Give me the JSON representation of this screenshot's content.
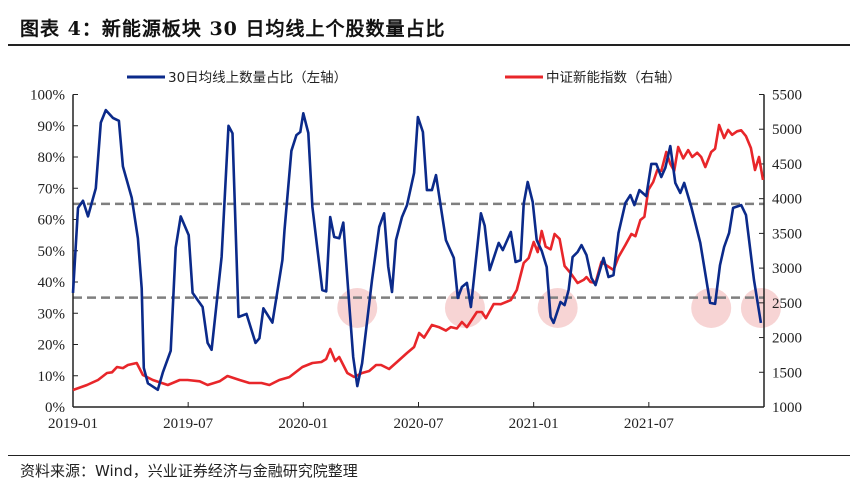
{
  "title": "图表 4：新能源板块 30 日均线上个股数量占比",
  "source": "资料来源：Wind，兴业证券经济与金融研究院整理",
  "chart_data": {
    "type": "line",
    "x_unit": "months since 2019-01",
    "xlim": [
      0,
      36
    ],
    "x_ticks": [
      0,
      6,
      12,
      18,
      24,
      30
    ],
    "x_tick_labels": [
      "2019-01",
      "2019-07",
      "2020-01",
      "2020-07",
      "2021-01",
      "2021-07"
    ],
    "y_left": {
      "lim": [
        0,
        100
      ],
      "ticks": [
        0,
        10,
        20,
        30,
        40,
        50,
        60,
        70,
        80,
        90,
        100
      ],
      "tick_labels": [
        "0%",
        "10%",
        "20%",
        "30%",
        "40%",
        "50%",
        "60%",
        "70%",
        "80%",
        "90%",
        "100%"
      ]
    },
    "y_right": {
      "lim": [
        1000,
        5500
      ],
      "ticks": [
        1000,
        1500,
        2000,
        2500,
        3000,
        3500,
        4000,
        4500,
        5000,
        5500
      ],
      "tick_labels": [
        "1000",
        "1500",
        "2000",
        "2500",
        "3000",
        "3500",
        "4000",
        "4500",
        "5000",
        "5500"
      ]
    },
    "legend_position": "top",
    "grid": false,
    "reference_lines": [
      65,
      35
    ],
    "highlights": [
      {
        "x": 14.81,
        "y": 31.7
      },
      {
        "x": 20.42,
        "y": 31.7
      },
      {
        "x": 25.25,
        "y": 31.7
      },
      {
        "x": 33.25,
        "y": 31.7
      },
      {
        "x": 35.84,
        "y": 31.7
      }
    ],
    "series": [
      {
        "name": "30日均线上数量占比（左轴）",
        "axis": "left",
        "color": "#0b2a8a",
        "x": [
          0,
          0.26,
          0.52,
          0.78,
          1.19,
          1.45,
          1.71,
          2.08,
          2.39,
          2.6,
          3.06,
          3.38,
          3.58,
          3.69,
          3.9,
          4.42,
          4.68,
          5.09,
          5.35,
          5.61,
          6.03,
          6.23,
          6.75,
          7.01,
          7.22,
          7.74,
          8.1,
          8.31,
          8.62,
          9.04,
          9.51,
          9.71,
          9.92,
          10.39,
          10.91,
          11.02,
          11.38,
          11.64,
          11.84,
          12,
          12.26,
          12.47,
          12.99,
          13.19,
          13.4,
          13.61,
          13.87,
          14.08,
          14.39,
          14.6,
          14.81,
          15.06,
          15.58,
          15.95,
          16.21,
          16.42,
          16.62,
          16.83,
          17.14,
          17.4,
          17.77,
          17.97,
          18.23,
          18.44,
          18.7,
          18.91,
          19.43,
          19.84,
          20.05,
          20.26,
          20.52,
          20.73,
          20.99,
          21.25,
          21.45,
          21.71,
          22.18,
          22.39,
          22.81,
          23.06,
          23.32,
          23.48,
          23.69,
          23.95,
          24.16,
          24.42,
          24.68,
          24.88,
          25.04,
          25.4,
          25.61,
          25.82,
          26.03,
          26.29,
          26.49,
          26.75,
          27.01,
          27.22,
          27.64,
          27.9,
          28.16,
          28.42,
          28.78,
          29.04,
          29.25,
          29.51,
          29.87,
          30.13,
          30.39,
          30.65,
          30.86,
          31.12,
          31.38,
          31.64,
          31.84,
          32.21,
          32.68,
          33.19,
          33.45,
          33.71,
          33.92,
          34.18,
          34.39,
          34.81,
          35.06,
          35.48,
          35.84
        ],
        "values": [
          36.5,
          63.7,
          66,
          61,
          70,
          91,
          95,
          92.5,
          91.6,
          77,
          67,
          54,
          38,
          12.5,
          7.6,
          5.5,
          11,
          18,
          51,
          61,
          55,
          36.5,
          32,
          20.5,
          18.3,
          48,
          90,
          87.6,
          28.8,
          29.8,
          20.5,
          22,
          31.6,
          27,
          47,
          56.6,
          82,
          87,
          88,
          94,
          87.7,
          64,
          37.4,
          37,
          60.8,
          54.4,
          54,
          59,
          33,
          16,
          6.7,
          14,
          40.6,
          57.6,
          62,
          45,
          36.8,
          53.4,
          60.8,
          64.6,
          74.9,
          92.8,
          88,
          69.4,
          69.4,
          74.2,
          53.4,
          47.7,
          34.9,
          38.4,
          39.7,
          32,
          47,
          62,
          58,
          43.8,
          52.5,
          50.2,
          56,
          46.4,
          47,
          65,
          72,
          65.6,
          53.4,
          50,
          44.8,
          28.8,
          26.9,
          33.6,
          32.6,
          37.4,
          48,
          49.6,
          51.8,
          48.6,
          41.3,
          39,
          47.7,
          41.6,
          42.2,
          55.7,
          65.3,
          67.8,
          64.6,
          69.4,
          67.5,
          77.8,
          77.8,
          73.6,
          76.5,
          83.5,
          71.7,
          68.5,
          71.7,
          64,
          52.5,
          33.3,
          33,
          45.4,
          51.2,
          55.7,
          63.7,
          64.6,
          61.4,
          40.6,
          26.9
        ]
      },
      {
        "name": "中证新能指数（右轴）",
        "axis": "right",
        "color": "#e8262a",
        "x": [
          0,
          0.73,
          1.3,
          1.77,
          2.03,
          2.29,
          2.6,
          2.86,
          3.32,
          3.64,
          4.16,
          4.94,
          5.56,
          5.97,
          6.6,
          7.01,
          7.64,
          8.05,
          8.68,
          9.19,
          9.82,
          10.23,
          10.75,
          11.27,
          11.95,
          12.47,
          12.94,
          13.19,
          13.4,
          13.66,
          13.87,
          14.29,
          14.65,
          15.06,
          15.43,
          15.79,
          16.05,
          16.47,
          16.88,
          17.4,
          17.77,
          18.03,
          18.29,
          18.7,
          19.06,
          19.43,
          19.69,
          20,
          20.26,
          20.52,
          21.04,
          21.3,
          21.51,
          21.92,
          22.29,
          22.81,
          23.12,
          23.48,
          23.74,
          24,
          24.21,
          24.42,
          24.62,
          24.88,
          25.09,
          25.35,
          25.61,
          25.92,
          26.29,
          26.6,
          26.75,
          26.96,
          27.22,
          27.53,
          27.79,
          28.16,
          28.42,
          28.78,
          29.09,
          29.3,
          29.56,
          29.77,
          29.97,
          30.23,
          30.44,
          30.65,
          30.91,
          31.12,
          31.32,
          31.53,
          31.79,
          32.05,
          32.26,
          32.52,
          32.73,
          32.94,
          33.25,
          33.45,
          33.66,
          33.92,
          34.13,
          34.34,
          34.6,
          34.81,
          35.06,
          35.32,
          35.53,
          35.74,
          35.95
        ],
        "values": [
          1245,
          1317,
          1389,
          1490,
          1500,
          1576,
          1560,
          1605,
          1634,
          1461,
          1389,
          1317,
          1389,
          1389,
          1370,
          1317,
          1370,
          1446,
          1389,
          1346,
          1346,
          1317,
          1389,
          1430,
          1576,
          1634,
          1648,
          1691,
          1835,
          1663,
          1720,
          1490,
          1432,
          1490,
          1518,
          1605,
          1605,
          1547,
          1648,
          1778,
          1864,
          2066,
          2000,
          2181,
          2150,
          2100,
          2150,
          2130,
          2224,
          2150,
          2368,
          2368,
          2280,
          2483,
          2480,
          2540,
          2685,
          3074,
          3145,
          3376,
          3230,
          3534,
          3310,
          3270,
          3491,
          3420,
          3030,
          2930,
          2786,
          2830,
          2870,
          2800,
          2786,
          3088,
          3040,
          2973,
          3160,
          3333,
          3491,
          3460,
          3693,
          3740,
          4125,
          4240,
          4413,
          4400,
          4672,
          4500,
          4400,
          4744,
          4580,
          4700,
          4600,
          4660,
          4600,
          4456,
          4672,
          4720,
          5061,
          4874,
          4990,
          4920,
          4970,
          4985,
          4900,
          4730,
          4413,
          4600,
          4270
        ]
      }
    ]
  }
}
